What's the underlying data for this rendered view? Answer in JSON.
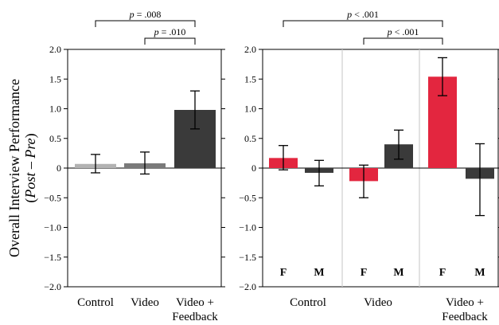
{
  "y_axis_label": {
    "line1": "Overall Interview Performance",
    "line2_open": "(",
    "line2_post": "Post",
    "line2_dash": " – ",
    "line2_pre": "Pre",
    "line2_close": ")"
  },
  "chart_data": [
    {
      "type": "bar",
      "ylim": [
        -2.0,
        2.0
      ],
      "yticks": [
        "2.0",
        "1.5",
        "1.0",
        "0.5",
        "0",
        "−0.5",
        "−1.0",
        "−1.5",
        "−2.0"
      ],
      "ytick_values": [
        2.0,
        1.5,
        1.0,
        0.5,
        0,
        -0.5,
        -1.0,
        -1.5,
        -2.0
      ],
      "categories": [
        {
          "line1": "Control",
          "line2": ""
        },
        {
          "line1": "Video",
          "line2": ""
        },
        {
          "line1": "Video +",
          "line2": "Feedback"
        }
      ],
      "bars": [
        {
          "value": 0.07,
          "err_low": -0.08,
          "err_high": 0.23,
          "color": "#b3b3b3"
        },
        {
          "value": 0.08,
          "err_low": -0.1,
          "err_high": 0.27,
          "color": "#7a7a7a"
        },
        {
          "value": 0.98,
          "err_low": 0.66,
          "err_high": 1.3,
          "color": "#3a3a3a"
        }
      ],
      "significance": [
        {
          "label": "p = .008",
          "from": 0,
          "to": 2
        },
        {
          "label": "p = .010",
          "from": 1,
          "to": 2
        }
      ]
    },
    {
      "type": "bar",
      "ylim": [
        -2.0,
        2.0
      ],
      "yticks": [
        "2.0",
        "1.5",
        "1.0",
        "0.5",
        "0",
        "−0.5",
        "−1.0",
        "−1.5",
        "−2.0"
      ],
      "ytick_values": [
        2.0,
        1.5,
        1.0,
        0.5,
        0,
        -0.5,
        -1.0,
        -1.5,
        -2.0
      ],
      "categories": [
        {
          "line1": "Control",
          "line2": ""
        },
        {
          "line1": "Video",
          "line2": ""
        },
        {
          "line1": "Video +",
          "line2": "Feedback"
        }
      ],
      "bars": [
        {
          "group": 0,
          "gender": "F",
          "value": 0.17,
          "err_low": -0.03,
          "err_high": 0.38,
          "color": "#e3263f"
        },
        {
          "group": 0,
          "gender": "M",
          "value": -0.08,
          "err_low": -0.3,
          "err_high": 0.13,
          "color": "#3a3a3a"
        },
        {
          "group": 1,
          "gender": "F",
          "value": -0.22,
          "err_low": -0.5,
          "err_high": 0.05,
          "color": "#e3263f"
        },
        {
          "group": 1,
          "gender": "M",
          "value": 0.4,
          "err_low": 0.15,
          "err_high": 0.64,
          "color": "#3a3a3a"
        },
        {
          "group": 2,
          "gender": "F",
          "value": 1.54,
          "err_low": 1.22,
          "err_high": 1.86,
          "color": "#e3263f"
        },
        {
          "group": 2,
          "gender": "M",
          "value": -0.18,
          "err_low": -0.8,
          "err_high": 0.41,
          "color": "#3a3a3a"
        }
      ],
      "significance": [
        {
          "label": "p < .001",
          "from_bar": 0,
          "to_bar": 4
        },
        {
          "label": "p < .001",
          "from_bar": 2,
          "to_bar": 4
        }
      ]
    }
  ]
}
